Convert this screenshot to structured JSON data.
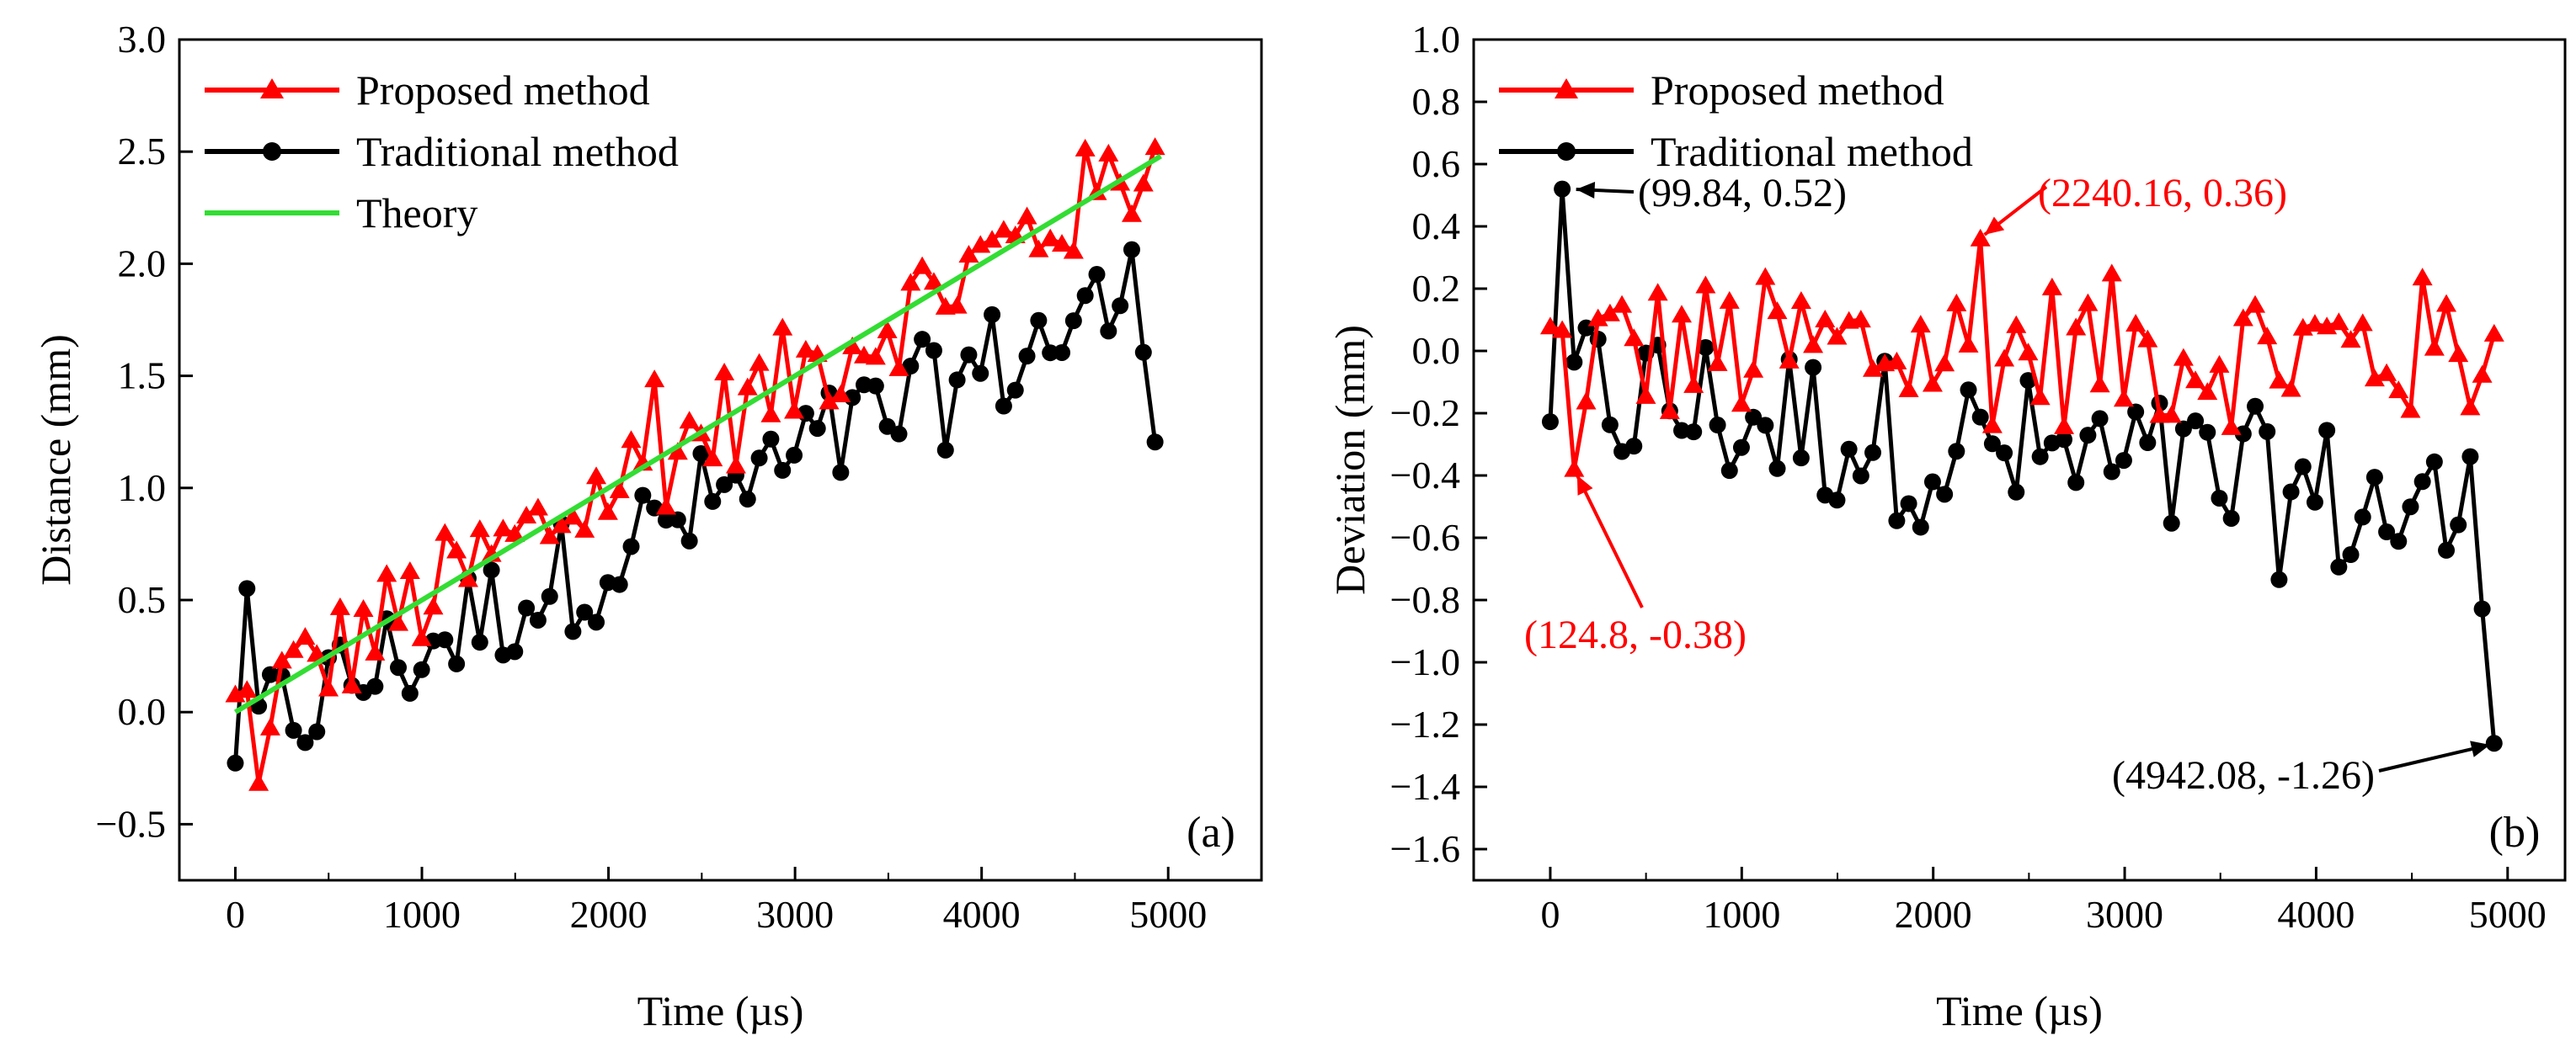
{
  "chart_data": [
    {
      "type": "line",
      "panel_label": "(a)",
      "xlabel": "Time (µs)",
      "ylabel": "Distance (mm)",
      "xlim": [
        -300,
        5500
      ],
      "ylim": [
        -0.75,
        3.0
      ],
      "xticks": [
        0,
        1000,
        2000,
        3000,
        4000,
        5000
      ],
      "xtick_labels": [
        "0",
        "1000",
        "2000",
        "3000",
        "4000",
        "5000"
      ],
      "yticks": [
        -0.5,
        0.0,
        0.5,
        1.0,
        1.5,
        2.0,
        2.5,
        3.0
      ],
      "ytick_labels": [
        "−0.5",
        "0.0",
        "0.5",
        "1.0",
        "1.5",
        "2.0",
        "2.5",
        "3.0"
      ],
      "grid": false,
      "legend_position": "top-left",
      "series": [
        {
          "name": "Proposed method",
          "color": "#ff0000",
          "marker": "triangle",
          "x_start": 0,
          "x_step": 62.4,
          "points": 80,
          "trend_slope_per_us": 0.0005,
          "trend_intercept": 0.0,
          "deviation_range": [
            -0.38,
            0.36
          ]
        },
        {
          "name": "Traditional method",
          "color": "#000000",
          "marker": "circle",
          "x_start": 0,
          "x_step": 62.4,
          "points": 80,
          "trend_slope_per_us": 0.00037,
          "trend_intercept": 0.0,
          "deviation_range": [
            -1.26,
            0.52
          ]
        },
        {
          "name": "Theory",
          "color": "#33dd33",
          "marker": "none",
          "x": [
            0,
            4960
          ],
          "y": [
            0.0,
            2.48
          ]
        }
      ]
    },
    {
      "type": "line",
      "panel_label": "(b)",
      "xlabel": "Time (µs)",
      "ylabel": "Deviation (mm)",
      "xlim": [
        -400,
        5300
      ],
      "ylim": [
        -1.7,
        1.0
      ],
      "xticks": [
        0,
        1000,
        2000,
        3000,
        4000,
        5000
      ],
      "xtick_labels": [
        "0",
        "1000",
        "2000",
        "3000",
        "4000",
        "5000"
      ],
      "yticks": [
        -1.6,
        -1.4,
        -1.2,
        -1.0,
        -0.8,
        -0.6,
        -0.4,
        -0.2,
        0.0,
        0.2,
        0.4,
        0.6,
        0.8,
        1.0
      ],
      "ytick_labels": [
        "−1.6",
        "−1.4",
        "−1.2",
        "−1.0",
        "−0.8",
        "−0.6",
        "−0.4",
        "−0.2",
        "0.0",
        "0.2",
        "0.4",
        "0.6",
        "0.8",
        "1.0"
      ],
      "grid": false,
      "legend_position": "top-left",
      "series": [
        {
          "name": "Proposed method",
          "color": "#ff0000",
          "marker": "triangle",
          "deviation_range": [
            -0.38,
            0.36
          ]
        },
        {
          "name": "Traditional method",
          "color": "#000000",
          "marker": "circle",
          "deviation_range": [
            -1.26,
            0.52
          ]
        }
      ],
      "annotations": [
        {
          "text": "(99.84, 0.52)",
          "x": 99.84,
          "y": 0.52,
          "color": "#000000"
        },
        {
          "text": "(2240.16, 0.36)",
          "x": 2240.16,
          "y": 0.36,
          "color": "#ff0000"
        },
        {
          "text": "(124.8, -0.38)",
          "x": 124.8,
          "y": -0.38,
          "color": "#ff0000"
        },
        {
          "text": "(4942.08, -1.26)",
          "x": 4942.08,
          "y": -1.26,
          "color": "#000000"
        }
      ]
    }
  ]
}
